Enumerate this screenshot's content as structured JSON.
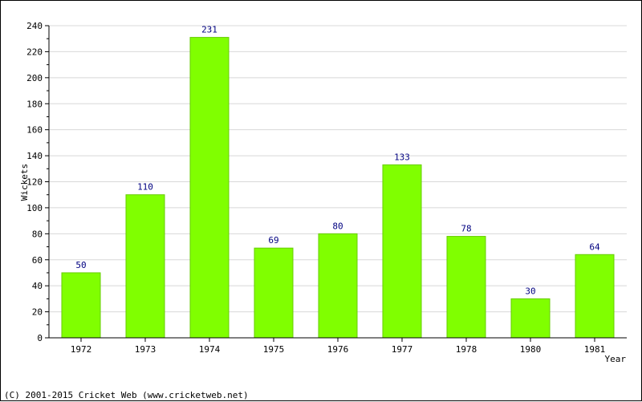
{
  "chart_data": {
    "type": "bar",
    "categories": [
      "1972",
      "1973",
      "1974",
      "1975",
      "1976",
      "1977",
      "1978",
      "1980",
      "1981"
    ],
    "values": [
      50,
      110,
      231,
      69,
      80,
      133,
      78,
      30,
      64
    ],
    "title": "",
    "xlabel": "Year",
    "ylabel": "Wickets",
    "ylim": [
      0,
      240
    ],
    "yticks": [
      0,
      20,
      40,
      60,
      80,
      100,
      120,
      140,
      160,
      180,
      200,
      220,
      240
    ],
    "grid": true,
    "legend": "none",
    "colors": {
      "bar": "#80ff00",
      "bar_stroke": "#66cc00",
      "value_label": "#000080",
      "grid": "#d8d8d8",
      "axis": "#000000",
      "text": "#000000"
    }
  },
  "footer": {
    "copyright": "(C) 2001-2015 Cricket Web (www.cricketweb.net)"
  }
}
